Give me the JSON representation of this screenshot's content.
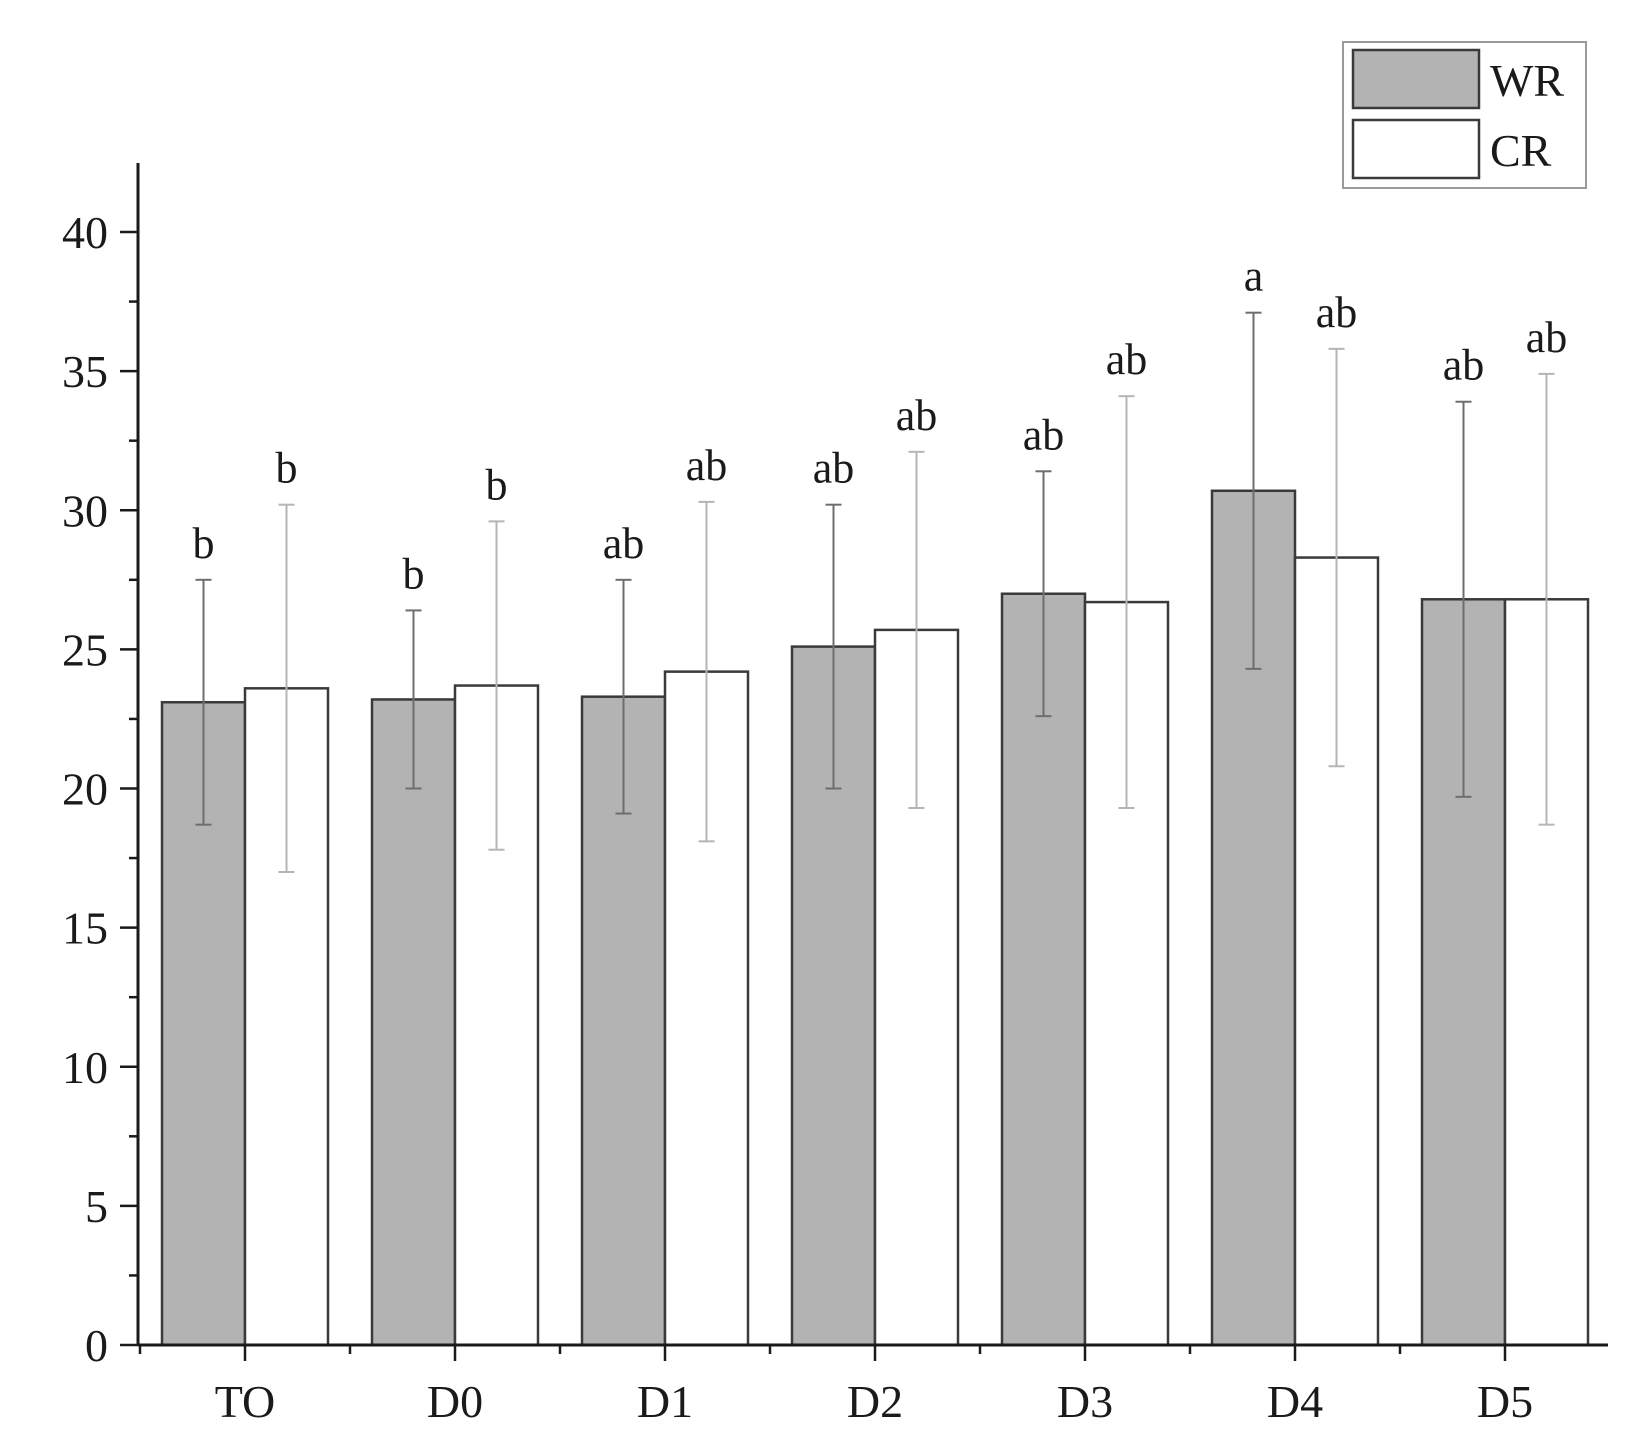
{
  "chart_data": {
    "type": "bar",
    "categories": [
      "TO",
      "D0",
      "D1",
      "D2",
      "D3",
      "D4",
      "D5"
    ],
    "series": [
      {
        "name": "WR",
        "color": "#b3b3b3",
        "values": [
          23.1,
          23.2,
          23.3,
          25.1,
          27.0,
          30.7,
          26.8
        ],
        "errors": [
          4.4,
          3.2,
          4.2,
          5.1,
          4.4,
          6.4,
          7.1
        ],
        "significance": [
          "b",
          "b",
          "ab",
          "ab",
          "ab",
          "a",
          "ab"
        ]
      },
      {
        "name": "CR",
        "color": "#ffffff",
        "values": [
          23.6,
          23.7,
          24.2,
          25.7,
          26.7,
          28.3,
          26.8
        ],
        "errors": [
          6.6,
          5.9,
          6.1,
          6.4,
          7.4,
          7.5,
          8.1
        ],
        "significance": [
          "b",
          "b",
          "ab",
          "ab",
          "ab",
          "ab",
          "ab"
        ]
      }
    ],
    "title": "",
    "xlabel": "",
    "ylabel": "",
    "ylim": [
      0,
      42
    ],
    "yticks": [
      0,
      5,
      10,
      15,
      20,
      25,
      30,
      35,
      40
    ],
    "grid": false,
    "legend_position": "top-right"
  }
}
